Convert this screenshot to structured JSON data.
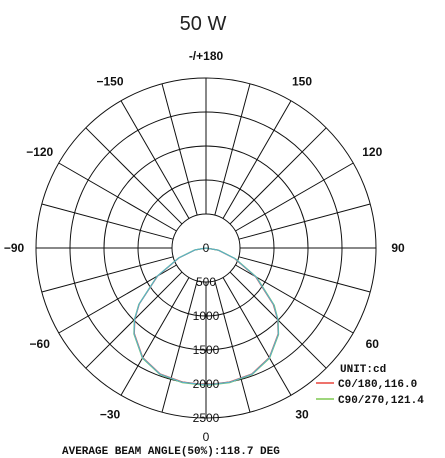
{
  "header": {
    "title": "50 W"
  },
  "chart_data": {
    "type": "polar",
    "title": "50 W",
    "unit_label": "UNIT:cd",
    "footer": "AVERAGE BEAM ANGLE(50%):118.7 DEG",
    "angle_ticks": [
      {
        "angle": 180,
        "label": "-/+180"
      },
      {
        "angle": 150,
        "label": "150"
      },
      {
        "angle": 120,
        "label": "120"
      },
      {
        "angle": 90,
        "label": "90"
      },
      {
        "angle": 60,
        "label": "60"
      },
      {
        "angle": 30,
        "label": "30"
      },
      {
        "angle": 0,
        "label": "0"
      },
      {
        "angle": -30,
        "label": "−30"
      },
      {
        "angle": -60,
        "label": "−60"
      },
      {
        "angle": -90,
        "label": "−90"
      },
      {
        "angle": -120,
        "label": "−120"
      },
      {
        "angle": -150,
        "label": "−150"
      }
    ],
    "radial_ticks": [
      {
        "value": 0,
        "label": "0"
      },
      {
        "value": 500,
        "label": "500"
      },
      {
        "value": 1000,
        "label": "1000"
      },
      {
        "value": 1500,
        "label": "1500"
      },
      {
        "value": 2000,
        "label": "2000"
      },
      {
        "value": 2500,
        "label": "2500"
      }
    ],
    "grid_step_deg": 15,
    "radial_max": 2500,
    "series": [
      {
        "name": "C0/180,116.0",
        "color": "#e8453c",
        "angles": [
          -90,
          -80,
          -70,
          -60,
          -50,
          -45,
          -40,
          -30,
          -20,
          -10,
          0,
          10,
          20,
          30,
          40,
          45,
          50,
          60,
          70,
          80,
          90
        ],
        "values": [
          0,
          160,
          420,
          820,
          1280,
          1480,
          1640,
          1860,
          1970,
          2000,
          2010,
          2000,
          1970,
          1860,
          1650,
          1490,
          1290,
          840,
          440,
          180,
          0
        ]
      },
      {
        "name": "C90/270,121.4",
        "color": "#7ec850",
        "angles": [
          -90,
          -80,
          -70,
          -60,
          -50,
          -45,
          -40,
          -30,
          -20,
          -10,
          0,
          10,
          20,
          30,
          40,
          45,
          50,
          60,
          70,
          80,
          90
        ],
        "values": [
          0,
          170,
          430,
          830,
          1290,
          1490,
          1650,
          1870,
          1980,
          2010,
          2020,
          2010,
          1980,
          1870,
          1660,
          1500,
          1310,
          860,
          460,
          190,
          0
        ]
      },
      {
        "name": "",
        "color": "#5ab0c8",
        "angles": [
          -90,
          -80,
          -70,
          -60,
          -50,
          -45,
          -40,
          -30,
          -20,
          -10,
          0,
          10,
          20,
          30,
          40,
          45,
          50,
          60,
          70,
          80,
          90
        ],
        "values": [
          0,
          165,
          425,
          825,
          1285,
          1485,
          1645,
          1865,
          1975,
          2005,
          2015,
          2005,
          1975,
          1865,
          1655,
          1495,
          1300,
          850,
          450,
          185,
          0
        ]
      }
    ],
    "legend": [
      {
        "label": "C0/180,116.0",
        "color": "#e8453c"
      },
      {
        "label": "C90/270,121.4",
        "color": "#7ec850"
      }
    ]
  }
}
